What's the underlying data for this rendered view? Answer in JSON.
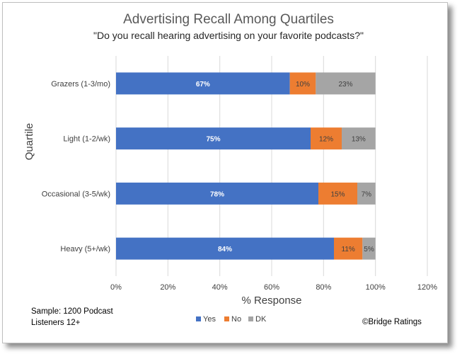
{
  "chart_data": {
    "type": "bar",
    "orientation": "horizontal",
    "stacked": true,
    "title": "Advertising Recall Among Quartiles",
    "subtitle": "\"Do you recall hearing advertising on your favorite podcasts?\"",
    "ylabel": "Quartile",
    "xlabel": "% Response",
    "categories": [
      "Grazers (1-3/mo)",
      "Light (1-2/wk)",
      "Occasional (3-5/wk)",
      "Heavy (5+/wk)"
    ],
    "series": [
      {
        "name": "Yes",
        "color": "#4472c4",
        "values": [
          67,
          75,
          78,
          84
        ],
        "labels": [
          "67%",
          "75%",
          "78%",
          "84%"
        ]
      },
      {
        "name": "No",
        "color": "#ed7d31",
        "values": [
          10,
          12,
          15,
          11
        ],
        "labels": [
          "10%",
          "12%",
          "15%",
          "11%"
        ]
      },
      {
        "name": "DK",
        "color": "#a5a5a5",
        "values": [
          23,
          13,
          7,
          5
        ],
        "labels": [
          "23%",
          "13%",
          "7%",
          "5%"
        ]
      }
    ],
    "xlim": [
      0,
      120
    ],
    "xticks": [
      0,
      20,
      40,
      60,
      80,
      100,
      120
    ],
    "xtick_labels": [
      "0%",
      "20%",
      "40%",
      "60%",
      "80%",
      "100%",
      "120%"
    ],
    "grid": true,
    "legend": "bottom"
  },
  "notes": {
    "sample": "Sample: 1200 Podcast Listeners 12+",
    "credit": "©Bridge Ratings"
  }
}
